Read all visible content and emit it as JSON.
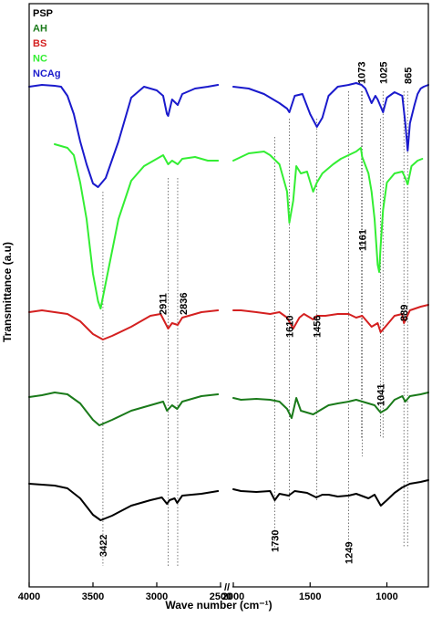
{
  "chart_data": {
    "type": "line",
    "xlabel": "Wave number (cm⁻¹)",
    "ylabel": "Transmittance (a.u)",
    "x_ticks": [
      "4000",
      "3500",
      "3000",
      "2500",
      "2000",
      "1500",
      "1000"
    ],
    "axis_break": "//",
    "x_segments": [
      [
        4000,
        2500
      ],
      [
        2000,
        730
      ]
    ],
    "x_reversed": true,
    "grid": false,
    "legend_placement": "top-left",
    "legend": [
      {
        "label": "PSP",
        "color": "#000000"
      },
      {
        "label": "AH",
        "color": "#1a7a1a"
      },
      {
        "label": "BS",
        "color": "#d42020"
      },
      {
        "label": "NC",
        "color": "#33ee33"
      },
      {
        "label": "NCAg",
        "color": "#1a1acc"
      }
    ],
    "peaks": [
      {
        "label": "3422",
        "x": 3422
      },
      {
        "label": "2911",
        "x": 2911
      },
      {
        "label": "2836",
        "x": 2836
      },
      {
        "label": "1730",
        "x": 1730
      },
      {
        "label": "1610",
        "x": 1635
      },
      {
        "label": "1456",
        "x": 1456
      },
      {
        "label": "1249",
        "x": 1249
      },
      {
        "label": "1161",
        "x": 1161
      },
      {
        "label": "1073",
        "x": 1165
      },
      {
        "label": "1041",
        "x": 1041
      },
      {
        "label": "1025",
        "x": 1025
      },
      {
        "label": "889",
        "x": 889
      },
      {
        "label": "865",
        "x": 865
      }
    ],
    "series": [
      {
        "name": "PSP",
        "color": "#000000",
        "segments": [
          [
            [
              4000,
              10
            ],
            [
              3900,
              9
            ],
            [
              3800,
              8
            ],
            [
              3700,
              5
            ],
            [
              3600,
              -6
            ],
            [
              3500,
              -24
            ],
            [
              3440,
              -30
            ],
            [
              3350,
              -25
            ],
            [
              3200,
              -14
            ],
            [
              3050,
              -8
            ],
            [
              2960,
              -5
            ],
            [
              2920,
              -12
            ],
            [
              2900,
              -8
            ],
            [
              2860,
              -6
            ],
            [
              2840,
              -11
            ],
            [
              2800,
              -3
            ],
            [
              2650,
              -1
            ],
            [
              2520,
              2
            ]
          ],
          [
            [
              2000,
              4
            ],
            [
              1950,
              2
            ],
            [
              1850,
              1
            ],
            [
              1760,
              2
            ],
            [
              1730,
              -8
            ],
            [
              1700,
              -1
            ],
            [
              1640,
              -3
            ],
            [
              1600,
              2
            ],
            [
              1520,
              0
            ],
            [
              1460,
              -5
            ],
            [
              1420,
              -2
            ],
            [
              1380,
              -2
            ],
            [
              1320,
              -4
            ],
            [
              1249,
              -3
            ],
            [
              1200,
              -1
            ],
            [
              1120,
              -6
            ],
            [
              1080,
              -2
            ],
            [
              1040,
              -14
            ],
            [
              1000,
              -8
            ],
            [
              950,
              0
            ],
            [
              900,
              6
            ],
            [
              850,
              10
            ],
            [
              780,
              12
            ],
            [
              730,
              14
            ]
          ]
        ]
      },
      {
        "name": "AH",
        "color": "#1a7a1a",
        "segments": [
          [
            [
              4000,
              5
            ],
            [
              3900,
              7
            ],
            [
              3800,
              10
            ],
            [
              3700,
              8
            ],
            [
              3600,
              -2
            ],
            [
              3500,
              -20
            ],
            [
              3450,
              -26
            ],
            [
              3350,
              -20
            ],
            [
              3200,
              -10
            ],
            [
              3050,
              -4
            ],
            [
              2950,
              0
            ],
            [
              2920,
              -10
            ],
            [
              2880,
              -4
            ],
            [
              2840,
              -8
            ],
            [
              2800,
              0
            ],
            [
              2650,
              6
            ],
            [
              2520,
              8
            ]
          ],
          [
            [
              2000,
              4
            ],
            [
              1950,
              2
            ],
            [
              1850,
              3
            ],
            [
              1760,
              2
            ],
            [
              1700,
              0
            ],
            [
              1650,
              -8
            ],
            [
              1620,
              -18
            ],
            [
              1590,
              4
            ],
            [
              1560,
              -10
            ],
            [
              1480,
              -14
            ],
            [
              1420,
              -8
            ],
            [
              1380,
              -4
            ],
            [
              1320,
              -2
            ],
            [
              1249,
              0
            ],
            [
              1200,
              2
            ],
            [
              1120,
              -2
            ],
            [
              1080,
              -4
            ],
            [
              1041,
              -12
            ],
            [
              1000,
              -8
            ],
            [
              950,
              2
            ],
            [
              900,
              6
            ],
            [
              880,
              0
            ],
            [
              850,
              6
            ],
            [
              780,
              8
            ],
            [
              730,
              10
            ]
          ]
        ]
      },
      {
        "name": "BS",
        "color": "#d42020",
        "segments": [
          [
            [
              4000,
              8
            ],
            [
              3900,
              10
            ],
            [
              3800,
              8
            ],
            [
              3700,
              6
            ],
            [
              3600,
              -2
            ],
            [
              3500,
              -16
            ],
            [
              3422,
              -22
            ],
            [
              3350,
              -18
            ],
            [
              3200,
              -8
            ],
            [
              3050,
              4
            ],
            [
              2970,
              6
            ],
            [
              2911,
              -10
            ],
            [
              2880,
              -4
            ],
            [
              2836,
              -6
            ],
            [
              2800,
              2
            ],
            [
              2650,
              8
            ],
            [
              2520,
              10
            ]
          ],
          [
            [
              2000,
              10
            ],
            [
              1950,
              10
            ],
            [
              1850,
              8
            ],
            [
              1760,
              6
            ],
            [
              1700,
              8
            ],
            [
              1650,
              2
            ],
            [
              1610,
              -10
            ],
            [
              1570,
              2
            ],
            [
              1540,
              6
            ],
            [
              1480,
              0
            ],
            [
              1456,
              4
            ],
            [
              1400,
              4
            ],
            [
              1320,
              6
            ],
            [
              1249,
              6
            ],
            [
              1200,
              2
            ],
            [
              1161,
              4
            ],
            [
              1100,
              -8
            ],
            [
              1060,
              -4
            ],
            [
              1041,
              -14
            ],
            [
              1000,
              -6
            ],
            [
              950,
              4
            ],
            [
              900,
              6
            ],
            [
              889,
              -4
            ],
            [
              850,
              10
            ],
            [
              780,
              14
            ],
            [
              730,
              16
            ]
          ]
        ]
      },
      {
        "name": "NC",
        "color": "#33ee33",
        "segments": [
          [
            [
              3800,
              22
            ],
            [
              3750,
              20
            ],
            [
              3700,
              18
            ],
            [
              3650,
              10
            ],
            [
              3600,
              -20
            ],
            [
              3550,
              -60
            ],
            [
              3500,
              -120
            ],
            [
              3460,
              -150
            ],
            [
              3440,
              -158
            ],
            [
              3400,
              -130
            ],
            [
              3300,
              -60
            ],
            [
              3200,
              -18
            ],
            [
              3100,
              -2
            ],
            [
              3000,
              6
            ],
            [
              2950,
              10
            ],
            [
              2911,
              0
            ],
            [
              2880,
              4
            ],
            [
              2836,
              0
            ],
            [
              2800,
              6
            ],
            [
              2700,
              8
            ],
            [
              2600,
              4
            ],
            [
              2520,
              4
            ]
          ],
          [
            [
              2000,
              4
            ],
            [
              1900,
              12
            ],
            [
              1800,
              14
            ],
            [
              1760,
              10
            ],
            [
              1700,
              0
            ],
            [
              1650,
              -30
            ],
            [
              1635,
              -64
            ],
            [
              1610,
              -40
            ],
            [
              1590,
              -2
            ],
            [
              1560,
              -10
            ],
            [
              1520,
              -8
            ],
            [
              1480,
              -30
            ],
            [
              1456,
              -20
            ],
            [
              1420,
              -10
            ],
            [
              1350,
              0
            ],
            [
              1300,
              6
            ],
            [
              1250,
              10
            ],
            [
              1200,
              14
            ],
            [
              1170,
              18
            ],
            [
              1161,
              8
            ],
            [
              1120,
              -10
            ],
            [
              1100,
              -30
            ],
            [
              1080,
              -60
            ],
            [
              1060,
              -110
            ],
            [
              1050,
              -118
            ],
            [
              1041,
              -90
            ],
            [
              1025,
              -50
            ],
            [
              1000,
              -20
            ],
            [
              950,
              -10
            ],
            [
              900,
              -8
            ],
            [
              880,
              -15
            ],
            [
              865,
              -22
            ],
            [
              840,
              -2
            ],
            [
              800,
              4
            ],
            [
              770,
              6
            ]
          ]
        ]
      },
      {
        "name": "NCAg",
        "color": "#1a1acc",
        "segments": [
          [
            [
              4000,
              0
            ],
            [
              3900,
              2
            ],
            [
              3800,
              1
            ],
            [
              3750,
              0
            ],
            [
              3700,
              -10
            ],
            [
              3650,
              -30
            ],
            [
              3600,
              -60
            ],
            [
              3550,
              -85
            ],
            [
              3500,
              -106
            ],
            [
              3460,
              -110
            ],
            [
              3400,
              -100
            ],
            [
              3300,
              -60
            ],
            [
              3200,
              -12
            ],
            [
              3100,
              0
            ],
            [
              3000,
              -4
            ],
            [
              2950,
              -10
            ],
            [
              2920,
              -30
            ],
            [
              2911,
              -32
            ],
            [
              2880,
              -14
            ],
            [
              2836,
              -20
            ],
            [
              2800,
              -8
            ],
            [
              2700,
              -2
            ],
            [
              2600,
              0
            ],
            [
              2520,
              2
            ]
          ],
          [
            [
              2000,
              0
            ],
            [
              1900,
              -2
            ],
            [
              1800,
              -8
            ],
            [
              1700,
              -18
            ],
            [
              1650,
              -24
            ],
            [
              1635,
              -28
            ],
            [
              1600,
              -10
            ],
            [
              1550,
              -8
            ],
            [
              1500,
              -30
            ],
            [
              1456,
              -44
            ],
            [
              1420,
              -34
            ],
            [
              1380,
              -10
            ],
            [
              1320,
              0
            ],
            [
              1249,
              2
            ],
            [
              1200,
              4
            ],
            [
              1165,
              2
            ],
            [
              1140,
              -2
            ],
            [
              1100,
              -18
            ],
            [
              1075,
              -10
            ],
            [
              1060,
              -14
            ],
            [
              1040,
              -22
            ],
            [
              1025,
              -28
            ],
            [
              1000,
              -12
            ],
            [
              950,
              -6
            ],
            [
              900,
              -10
            ],
            [
              880,
              -40
            ],
            [
              872,
              -56
            ],
            [
              865,
              -70
            ],
            [
              850,
              -40
            ],
            [
              820,
              -20
            ],
            [
              800,
              -8
            ],
            [
              780,
              -2
            ],
            [
              760,
              0
            ],
            [
              730,
              2
            ]
          ]
        ]
      }
    ]
  }
}
